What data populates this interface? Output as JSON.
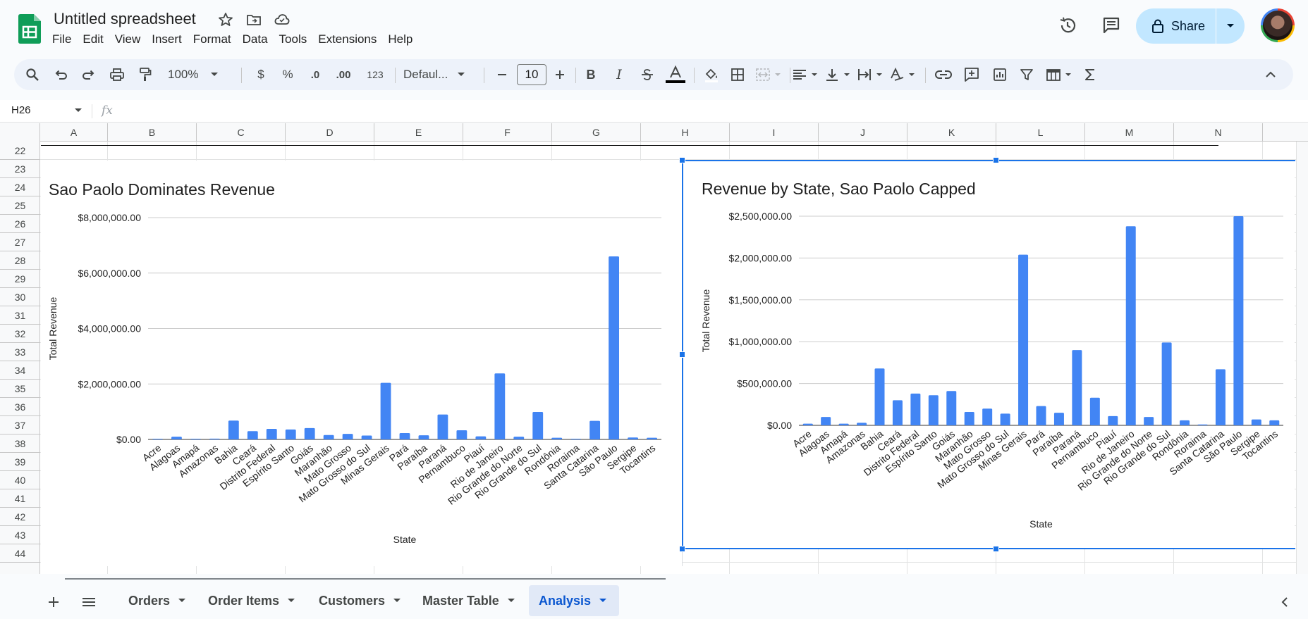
{
  "app": {
    "title": "Untitled spreadsheet",
    "menu": [
      "File",
      "Edit",
      "View",
      "Insert",
      "Format",
      "Data",
      "Tools",
      "Extensions",
      "Help"
    ],
    "share_label": "Share"
  },
  "toolbar": {
    "zoom": "100%",
    "currency": "$",
    "percent": "%",
    "decrease_decimal": ".0",
    "increase_decimal": ".00",
    "number_format": "123",
    "font": "Defaul...",
    "font_size": "10",
    "bold": "B",
    "italic": "I"
  },
  "formula_bar": {
    "cell_ref": "H26",
    "fx": "fx"
  },
  "grid": {
    "columns": [
      "A",
      "B",
      "C",
      "D",
      "E",
      "F",
      "G",
      "H",
      "I",
      "J",
      "K",
      "L",
      "M",
      "N"
    ],
    "rows": [
      "22",
      "23",
      "24",
      "25",
      "26",
      "27",
      "28",
      "29",
      "30",
      "31",
      "32",
      "33",
      "34",
      "35",
      "36",
      "37",
      "38",
      "39",
      "40",
      "41",
      "42",
      "43",
      "44"
    ]
  },
  "chart_data": [
    {
      "type": "bar",
      "title": "Sao Paolo Dominates Revenue",
      "xlabel": "State",
      "ylabel": "Total Revenue",
      "ylim": [
        0,
        8000000
      ],
      "yticks": [
        "$0.00",
        "$2,000,000.00",
        "$4,000,000.00",
        "$6,000,000.00",
        "$8,000,000.00"
      ],
      "grid": true,
      "color": "#4285f4",
      "categories": [
        "Acre",
        "Alagoas",
        "Amapá",
        "Amazonas",
        "Bahia",
        "Ceará",
        "Distrito Federal",
        "Espírito Santo",
        "Goiás",
        "Maranhão",
        "Mato Grosso",
        "Mato Grosso do Sul",
        "Minas Gerais",
        "Pará",
        "Paraíba",
        "Paraná",
        "Pernambuco",
        "Piauí",
        "Rio de Janeiro",
        "Rio Grande do Norte",
        "Rio Grande do Sul",
        "Rondônia",
        "Roraima",
        "Santa Catarina",
        "São Paulo",
        "Sergipe",
        "Tocantins"
      ],
      "values": [
        20000,
        100000,
        20000,
        30000,
        680000,
        300000,
        380000,
        360000,
        410000,
        160000,
        200000,
        140000,
        2040000,
        230000,
        150000,
        900000,
        330000,
        110000,
        2380000,
        100000,
        990000,
        60000,
        10000,
        670000,
        6600000,
        70000,
        60000
      ]
    },
    {
      "type": "bar",
      "title": "Revenue by State, Sao Paolo Capped",
      "xlabel": "State",
      "ylabel": "Total Revenue",
      "ylim": [
        0,
        2500000
      ],
      "yticks": [
        "$0.00",
        "$500,000.00",
        "$1,000,000.00",
        "$1,500,000.00",
        "$2,000,000.00",
        "$2,500,000.00"
      ],
      "grid": true,
      "color": "#4285f4",
      "categories": [
        "Acre",
        "Alagoas",
        "Amapá",
        "Amazonas",
        "Bahia",
        "Ceará",
        "Distrito Federal",
        "Espírito Santo",
        "Goiás",
        "Maranhão",
        "Mato Grosso",
        "Mato Grosso do Sul",
        "Minas Gerais",
        "Pará",
        "Paraíba",
        "Paraná",
        "Pernambuco",
        "Piauí",
        "Rio de Janeiro",
        "Rio Grande do Norte",
        "Rio Grande do Sul",
        "Rondônia",
        "Roraima",
        "Santa Catarina",
        "São Paulo",
        "Sergipe",
        "Tocantins"
      ],
      "values": [
        20000,
        100000,
        20000,
        30000,
        680000,
        300000,
        380000,
        360000,
        410000,
        160000,
        200000,
        140000,
        2040000,
        230000,
        150000,
        900000,
        330000,
        110000,
        2380000,
        100000,
        990000,
        60000,
        10000,
        670000,
        2500000,
        70000,
        60000
      ]
    }
  ],
  "sheets": {
    "tabs": [
      "Orders",
      "Order Items",
      "Customers",
      "Master Table",
      "Analysis"
    ],
    "active": "Analysis"
  }
}
